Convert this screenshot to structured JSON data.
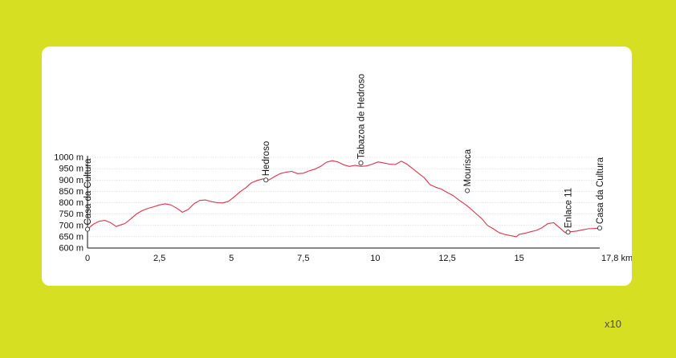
{
  "scale_note": "x10",
  "chart_data": {
    "type": "line",
    "title": "",
    "xlabel": "",
    "ylabel": "",
    "x_unit": "km",
    "y_unit": "m",
    "xlim": [
      0,
      17.8
    ],
    "ylim": [
      600,
      1000
    ],
    "x_ticks": [
      "0",
      "2,5",
      "5",
      "7,5",
      "10",
      "12,5",
      "15",
      "17,8 km"
    ],
    "x_tick_values": [
      0,
      2.5,
      5,
      7.5,
      10,
      12.5,
      15,
      17.8
    ],
    "y_ticks": [
      "1000 m",
      "950 m",
      "900 m",
      "850 m",
      "800 m",
      "750 m",
      "700 m",
      "650 m",
      "600 m"
    ],
    "y_tick_values": [
      1000,
      950,
      900,
      850,
      800,
      750,
      700,
      650,
      600
    ],
    "grid": true,
    "line_color": "#d9344c",
    "series": [
      {
        "x": [
          0,
          0.2,
          0.4,
          0.6,
          0.8,
          1.0,
          1.1,
          1.3,
          1.5,
          1.7,
          1.9,
          2.1,
          2.3,
          2.5,
          2.7,
          2.9,
          3.1,
          3.3,
          3.5,
          3.7,
          3.9,
          4.1,
          4.3,
          4.5,
          4.7,
          4.9,
          5.1,
          5.3,
          5.5,
          5.7,
          5.9,
          6.1,
          6.3,
          6.5,
          6.7,
          6.9,
          7.1,
          7.3,
          7.5,
          7.7,
          7.9,
          8.1,
          8.3,
          8.5,
          8.7,
          8.9,
          9.1,
          9.3,
          9.5,
          9.7,
          9.9,
          10.1,
          10.3,
          10.5,
          10.7,
          10.9,
          11.1,
          11.3,
          11.5,
          11.7,
          11.9,
          12.1,
          12.3,
          12.5,
          12.7,
          12.9,
          13.1,
          13.3,
          13.5,
          13.7,
          13.9,
          14.1,
          14.3,
          14.5,
          14.7,
          14.9,
          15.0,
          15.2,
          15.4,
          15.6,
          15.8,
          16.0,
          16.2,
          16.4,
          16.6,
          16.8,
          17.0,
          17.2,
          17.4,
          17.6,
          17.8
        ],
        "y": [
          683,
          705,
          718,
          722,
          712,
          695,
          700,
          708,
          728,
          750,
          765,
          775,
          782,
          790,
          795,
          790,
          776,
          758,
          770,
          795,
          810,
          812,
          805,
          800,
          799,
          806,
          826,
          848,
          866,
          888,
          898,
          905,
          900,
          915,
          928,
          935,
          938,
          928,
          930,
          940,
          948,
          960,
          978,
          985,
          980,
          967,
          960,
          965,
          960,
          962,
          970,
          980,
          975,
          970,
          968,
          983,
          970,
          950,
          930,
          910,
          880,
          868,
          860,
          845,
          832,
          812,
          795,
          775,
          752,
          730,
          700,
          685,
          668,
          660,
          655,
          650,
          660,
          665,
          672,
          678,
          690,
          708,
          712,
          690,
          668,
          672,
          675,
          680,
          685,
          686,
          688
        ]
      }
    ],
    "waypoints": [
      {
        "label": "Casa da Cultura",
        "x": 0,
        "y": 683
      },
      {
        "label": "Hedroso",
        "x": 6.2,
        "y": 900
      },
      {
        "label": "Tabazoa de Hedroso",
        "x": 9.5,
        "y": 975
      },
      {
        "label": "Mourisca",
        "x": 13.2,
        "y": 853
      },
      {
        "label": "Enlace 11",
        "x": 16.7,
        "y": 670
      },
      {
        "label": "Casa da Cultura",
        "x": 17.8,
        "y": 688
      }
    ]
  }
}
